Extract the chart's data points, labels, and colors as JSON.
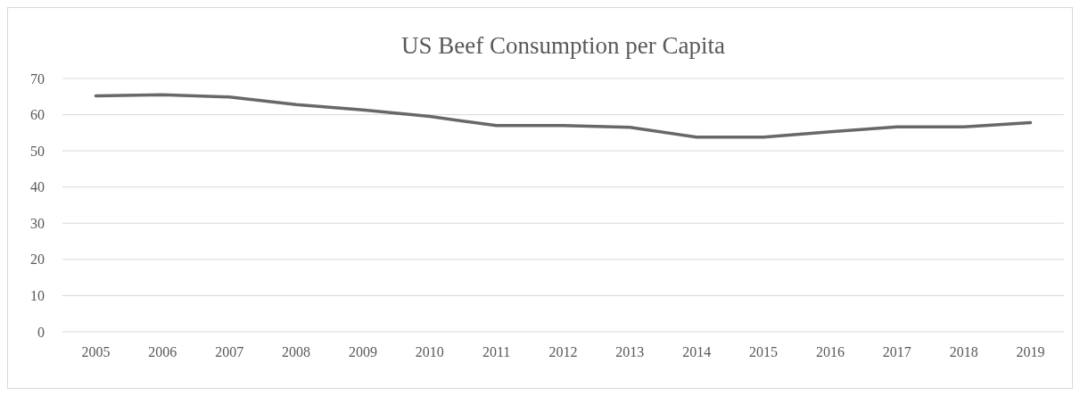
{
  "chart_data": {
    "type": "line",
    "title": "US Beef Consumption per Capita",
    "categories": [
      "2005",
      "2006",
      "2007",
      "2008",
      "2009",
      "2010",
      "2011",
      "2012",
      "2013",
      "2014",
      "2015",
      "2016",
      "2017",
      "2018",
      "2019"
    ],
    "series": [
      {
        "color": "#686868",
        "values": [
          65.2,
          65.5,
          64.9,
          62.8,
          61.3,
          59.5,
          57.0,
          57.0,
          56.5,
          53.8,
          53.8,
          55.3,
          56.6,
          56.6,
          57.8
        ]
      }
    ],
    "ylim": [
      0,
      70
    ],
    "yticks": [
      0,
      10,
      20,
      30,
      40,
      50,
      60,
      70
    ],
    "grid": "y",
    "marker": "none",
    "line_style": "solid"
  }
}
